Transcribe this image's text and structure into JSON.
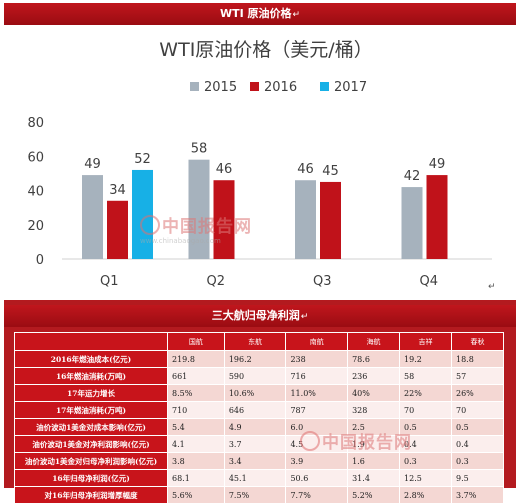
{
  "banner_top": {
    "title": "WTI 原油价格",
    "mark": "↵"
  },
  "banner_bottom": {
    "title": "三大航归母净利润",
    "mark": "↵"
  },
  "chart_data": {
    "type": "bar",
    "title": "WTI原油价格（美元/桶）",
    "categories": [
      "Q1",
      "Q2",
      "Q3",
      "Q4"
    ],
    "series": [
      {
        "name": "2015",
        "color": "#a6b2bd",
        "values": [
          49,
          58,
          46,
          42
        ]
      },
      {
        "name": "2016",
        "color": "#c0121a",
        "values": [
          34,
          46,
          45,
          49
        ]
      },
      {
        "name": "2017",
        "color": "#17b0e6",
        "values": [
          52,
          null,
          null,
          null
        ]
      }
    ],
    "ylim": [
      0,
      80
    ],
    "yticks": [
      0,
      20,
      40,
      60,
      80
    ],
    "legend": "top",
    "grid": false
  },
  "watermark": {
    "cn": "中国报告网",
    "en": "www.chinabaogao.com"
  },
  "table": {
    "headers": [
      "国航",
      "东航",
      "南航",
      "海航",
      "吉祥",
      "春秋"
    ],
    "rows": [
      {
        "label": "2016年燃油成本(亿元)",
        "values": [
          "219.8",
          "196.2",
          "238",
          "78.6",
          "19.2",
          "18.8"
        ]
      },
      {
        "label": "16年燃油消耗(万吨)",
        "values": [
          "661",
          "590",
          "716",
          "236",
          "58",
          "57"
        ]
      },
      {
        "label": "17年运力增长",
        "values": [
          "8.5%",
          "10.6%",
          "11.0%",
          "40%",
          "22%",
          "26%"
        ]
      },
      {
        "label": "17年燃油消耗(万吨)",
        "values": [
          "710",
          "646",
          "787",
          "328",
          "70",
          "70"
        ]
      },
      {
        "label": "油价波动1美金对成本影响(亿元)",
        "values": [
          "5.4",
          "4.9",
          "6.0",
          "2.5",
          "0.5",
          "0.5"
        ]
      },
      {
        "label": "油价波动1美金对净利润影响(亿元)",
        "values": [
          "4.1",
          "3.7",
          "4.5",
          "1.9",
          "0.4",
          "0.4"
        ]
      },
      {
        "label": "油价波动1美金对归母净利润影响(亿元)",
        "values": [
          "3.8",
          "3.4",
          "3.9",
          "1.6",
          "0.3",
          "0.3"
        ]
      },
      {
        "label": "16年归母净利润(亿元)",
        "values": [
          "68.1",
          "45.1",
          "50.6",
          "31.4",
          "12.5",
          "9.5"
        ]
      },
      {
        "label": "对16年归母净利润增厚幅度",
        "values": [
          "5.6%",
          "7.5%",
          "7.7%",
          "5.2%",
          "2.8%",
          "3.7%"
        ]
      }
    ]
  }
}
